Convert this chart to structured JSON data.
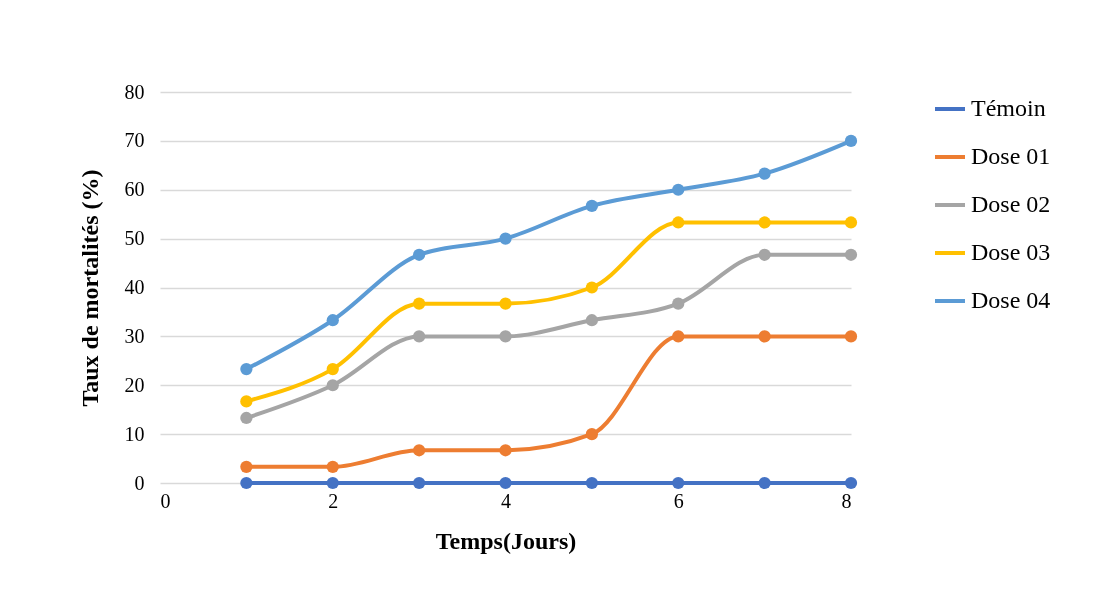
{
  "chart_data": {
    "type": "line",
    "xlabel": "Temps(Jours)",
    "ylabel": "Taux de mortalités (%)",
    "x": [
      1,
      2,
      3,
      4,
      5,
      6,
      7,
      8
    ],
    "xlim": [
      0,
      8
    ],
    "xticks": [
      0,
      2,
      4,
      6,
      8
    ],
    "ylim": [
      0,
      80
    ],
    "yticks": [
      0,
      10,
      20,
      30,
      40,
      50,
      60,
      70,
      80
    ],
    "grid": "y",
    "legend": "right",
    "marker": "circle",
    "line_style": "solid",
    "series": [
      {
        "name": "Témoin",
        "color": "#4472c4",
        "values": [
          0,
          0,
          0,
          0,
          0,
          0,
          0,
          0
        ]
      },
      {
        "name": "Dose 01",
        "color": "#ed7d31",
        "values": [
          3.3,
          3.3,
          6.7,
          6.7,
          10,
          30,
          30,
          30
        ]
      },
      {
        "name": "Dose 02",
        "color": "#a5a5a5",
        "values": [
          13.3,
          20,
          30,
          30,
          33.3,
          36.7,
          46.7,
          46.7
        ]
      },
      {
        "name": "Dose 03",
        "color": "#ffc000",
        "values": [
          16.7,
          23.3,
          36.7,
          36.7,
          40,
          53.3,
          53.3,
          53.3
        ]
      },
      {
        "name": "Dose 04",
        "color": "#5b9bd5",
        "values": [
          23.3,
          33.3,
          46.7,
          50,
          56.7,
          60,
          63.3,
          70
        ]
      }
    ]
  }
}
